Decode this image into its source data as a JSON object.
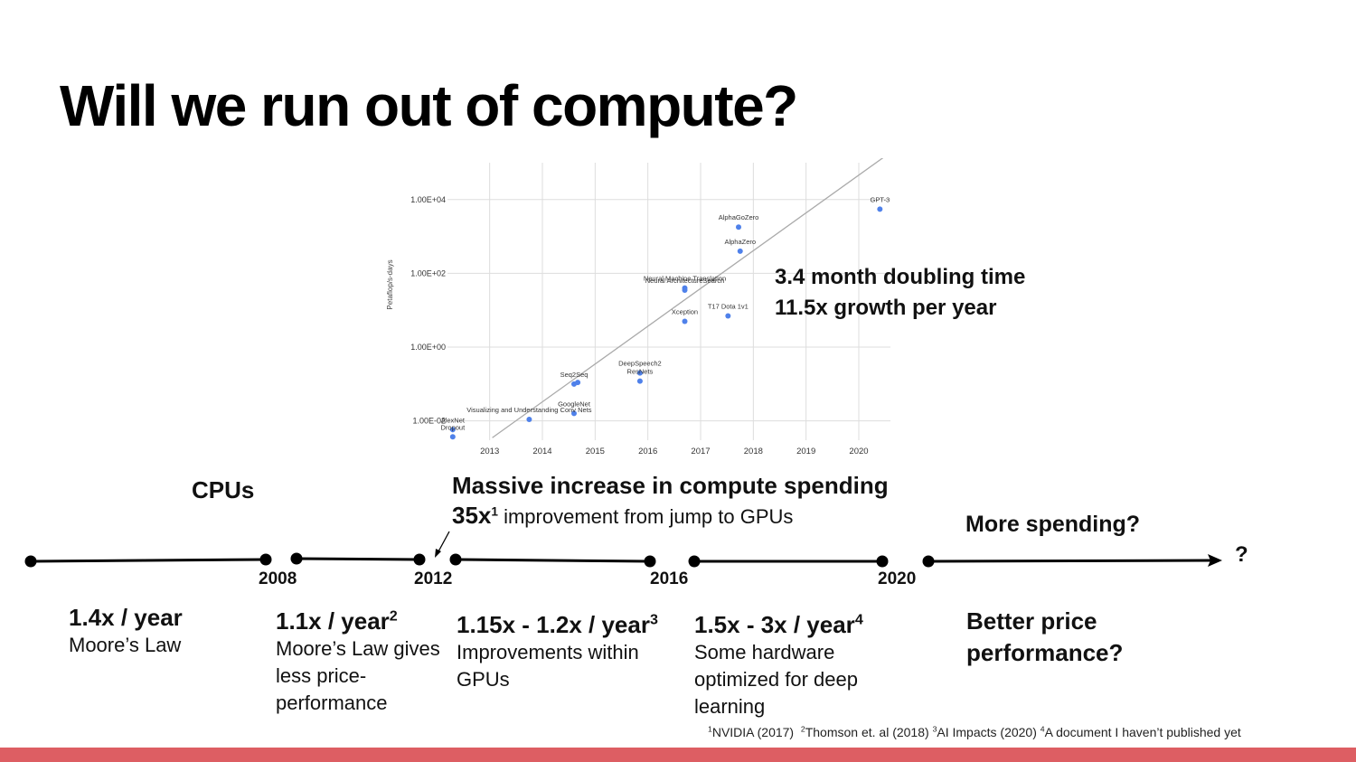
{
  "slide": {
    "title": "Will we run out of compute?",
    "accent_bar_color": "#dd5e63"
  },
  "chart_note": {
    "line1": "3.4 month doubling time",
    "line2": "11.5x growth per year"
  },
  "chart_data": {
    "type": "scatter",
    "ylabel": "Petaflop/s-days",
    "yscale": "log",
    "ylim": [
      0.003,
      100000
    ],
    "xlim": [
      2012.2,
      2020.6
    ],
    "x_ticks": [
      "2013",
      "2014",
      "2015",
      "2016",
      "2017",
      "2018",
      "2019",
      "2020"
    ],
    "y_ticks": [
      {
        "label": "1.00E-02",
        "value": 0.01
      },
      {
        "label": "1.00E+00",
        "value": 1
      },
      {
        "label": "1.00E+02",
        "value": 100
      },
      {
        "label": "1.00E+04",
        "value": 10000
      }
    ],
    "grid": true,
    "point_color": "#4f81ea",
    "trend_color": "#aaaaaa",
    "trend_line": {
      "x": [
        2013.05,
        2020.5
      ],
      "y": [
        0.0035,
        150000
      ]
    },
    "points": [
      {
        "label": "AlexNet",
        "x": 2012.3,
        "y": 0.0058
      },
      {
        "label": "Dropout",
        "x": 2012.3,
        "y": 0.0037
      },
      {
        "label": "Visualizing and Understanding Conv Nets",
        "x": 2013.75,
        "y": 0.011
      },
      {
        "label": "GoogleNet",
        "x": 2014.6,
        "y": 0.016
      },
      {
        "label": "Seq2Seq",
        "x": 2014.6,
        "y": 0.1
      },
      {
        "label": "",
        "x": 2014.67,
        "y": 0.11
      },
      {
        "label": "DeepSpeech2",
        "x": 2015.85,
        "y": 0.2
      },
      {
        "label": "ResNets",
        "x": 2015.85,
        "y": 0.12
      },
      {
        "label": "Xception",
        "x": 2016.7,
        "y": 5
      },
      {
        "label": "Neural Machine Translation",
        "x": 2016.7,
        "y": 40
      },
      {
        "label": "Neural ArchitectureSearch",
        "x": 2016.7,
        "y": 35
      },
      {
        "label": "T17 Dota 1v1",
        "x": 2017.52,
        "y": 7
      },
      {
        "label": "AlphaGoZero",
        "x": 2017.72,
        "y": 1800
      },
      {
        "label": "AlphaZero",
        "x": 2017.75,
        "y": 400
      },
      {
        "label": "GPT-3",
        "x": 2020.4,
        "y": 5500
      }
    ]
  },
  "timeline": {
    "labels": {
      "cpus": "CPUs",
      "massive_heading": "Massive increase in compute spending",
      "massive_multiplier": "35x",
      "massive_sup": "1",
      "massive_text": " improvement from jump to GPUs",
      "more_spending": "More spending?",
      "question_mark": "?"
    },
    "years": [
      "2008",
      "2012",
      "2016",
      "2020"
    ],
    "segments": [
      {
        "rate": "1.4x / year",
        "sup": "",
        "desc": "Moore’s Law"
      },
      {
        "rate": "1.1x / year",
        "sup": "2",
        "desc": "Moore’s Law gives less price-performance"
      },
      {
        "rate": "1.15x - 1.2x / year",
        "sup": "3",
        "desc": "Improvements within GPUs"
      },
      {
        "rate": "1.5x - 3x / year",
        "sup": "4",
        "desc": "Some hardware optimized for deep learning"
      },
      {
        "rate": "Better price performance?",
        "sup": "",
        "desc": ""
      }
    ]
  },
  "footnotes": [
    {
      "n": "1",
      "text": "NVIDIA (2017)"
    },
    {
      "n": "2",
      "text": "Thomson et. al (2018)"
    },
    {
      "n": "3",
      "text": "AI Impacts (2020)"
    },
    {
      "n": "4",
      "text": "A document I haven’t published yet"
    }
  ]
}
